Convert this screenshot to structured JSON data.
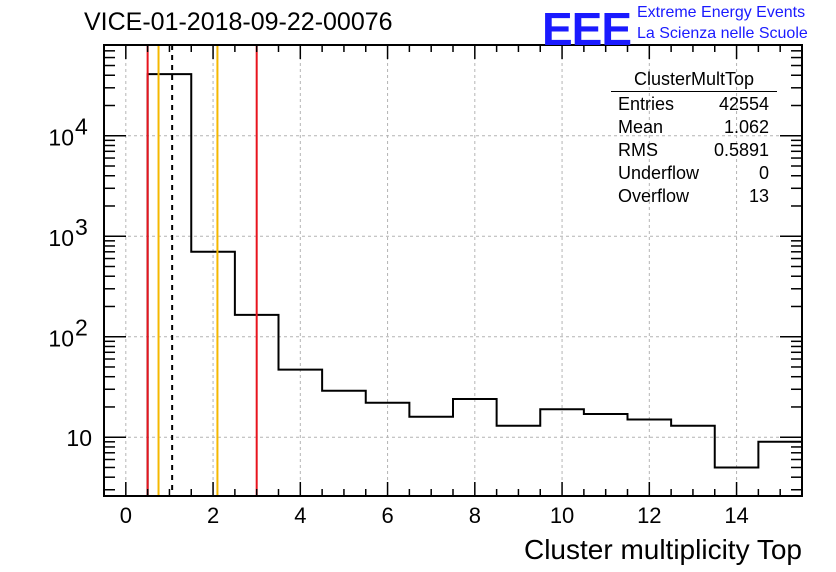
{
  "title": "VICE-01-2018-09-22-00076",
  "logo": {
    "text": "EEE",
    "line1": "Extreme Energy Events",
    "line2": "La Scienza nelle Scuole",
    "color": "#1a1aff"
  },
  "stats_box": {
    "name": "ClusterMultTop",
    "rows": [
      {
        "label": "Entries",
        "value": "42554"
      },
      {
        "label": "Mean",
        "value": "1.062"
      },
      {
        "label": "RMS",
        "value": "0.5891"
      },
      {
        "label": "Underflow",
        "value": "0"
      },
      {
        "label": "Overflow",
        "value": "13"
      }
    ]
  },
  "chart_data": {
    "type": "histogram",
    "title": "VICE-01-2018-09-22-00076",
    "xlabel": "Cluster multiplicity Top",
    "ylabel": "",
    "xlim": [
      -0.5,
      15.5
    ],
    "ylim": [
      2.6,
      80000
    ],
    "yscale": "log",
    "grid": true,
    "xticks": [
      0,
      2,
      4,
      6,
      8,
      10,
      12,
      14
    ],
    "yticks": [
      {
        "value": 10,
        "label": "10"
      },
      {
        "value": 100,
        "label": "10",
        "exp": "2"
      },
      {
        "value": 1000,
        "label": "10",
        "exp": "3"
      },
      {
        "value": 10000,
        "label": "10",
        "exp": "4"
      }
    ],
    "bins": [
      {
        "x0": 0.5,
        "x1": 1.5,
        "value": 41000
      },
      {
        "x0": 1.5,
        "x1": 2.5,
        "value": 700
      },
      {
        "x0": 2.5,
        "x1": 3.5,
        "value": 165
      },
      {
        "x0": 3.5,
        "x1": 4.5,
        "value": 47
      },
      {
        "x0": 4.5,
        "x1": 5.5,
        "value": 29
      },
      {
        "x0": 5.5,
        "x1": 6.5,
        "value": 22
      },
      {
        "x0": 6.5,
        "x1": 7.5,
        "value": 16
      },
      {
        "x0": 7.5,
        "x1": 8.5,
        "value": 24
      },
      {
        "x0": 8.5,
        "x1": 9.5,
        "value": 13
      },
      {
        "x0": 9.5,
        "x1": 10.5,
        "value": 19
      },
      {
        "x0": 10.5,
        "x1": 11.5,
        "value": 17
      },
      {
        "x0": 11.5,
        "x1": 12.5,
        "value": 15
      },
      {
        "x0": 12.5,
        "x1": 13.5,
        "value": 13
      },
      {
        "x0": 13.5,
        "x1": 14.5,
        "value": 5
      },
      {
        "x0": 14.5,
        "x1": 15.5,
        "value": 9
      }
    ],
    "vlines": [
      {
        "name": "red-line-left",
        "x": 0.5,
        "color": "#e8141e",
        "style": "solid"
      },
      {
        "name": "orange-line-left",
        "x": 0.75,
        "color": "#f5b800",
        "style": "solid"
      },
      {
        "name": "mean-line",
        "x": 1.062,
        "color": "#000000",
        "style": "dashed"
      },
      {
        "name": "orange-line-right",
        "x": 2.1,
        "color": "#f5b800",
        "style": "solid"
      },
      {
        "name": "red-line-right",
        "x": 3.0,
        "color": "#e8141e",
        "style": "solid"
      }
    ]
  }
}
